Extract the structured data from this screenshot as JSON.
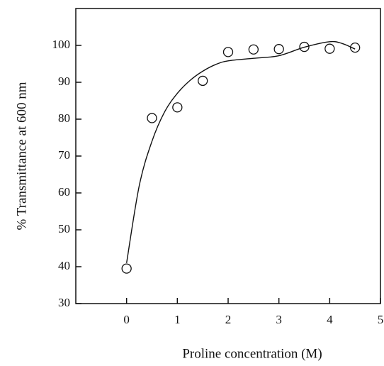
{
  "chart_data": {
    "type": "scatter",
    "x_label": "Proline concentration (M)",
    "y_label": "% Transmittance at 600 nm",
    "xlim": [
      -1,
      5
    ],
    "ylim": [
      30,
      110
    ],
    "xticks": [
      0,
      1,
      2,
      3,
      4,
      5
    ],
    "yticks": [
      30,
      40,
      50,
      60,
      70,
      80,
      90,
      100
    ],
    "series": [
      {
        "type": "scatter",
        "color": "#111111",
        "x": [
          0,
          0.5,
          1,
          1.5,
          2,
          2.5,
          3,
          3.5,
          4,
          4.5
        ],
        "values": [
          39.5,
          80.3,
          83.2,
          90.4,
          98.2,
          98.9,
          99,
          99.6,
          99.1,
          99.4
        ]
      },
      {
        "type": "line",
        "color": "#111111",
        "x": [
          0,
          0.25,
          0.5,
          0.75,
          1,
          1.25,
          1.5,
          1.75,
          2,
          2.5,
          3,
          3.5,
          4,
          4.25,
          4.5
        ],
        "values": [
          41,
          62,
          74,
          82,
          87,
          90.5,
          93,
          94.8,
          95.8,
          96.5,
          97.2,
          99.5,
          101,
          100.5,
          99
        ]
      }
    ]
  }
}
